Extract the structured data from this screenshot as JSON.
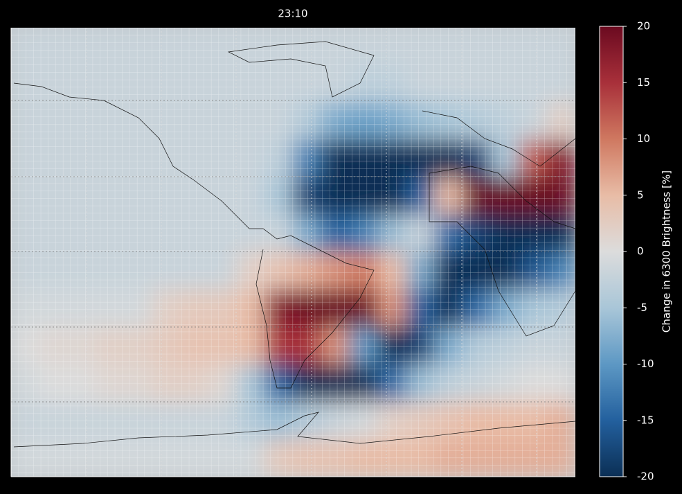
{
  "chart_data": {
    "type": "heatmap",
    "title": "23:10",
    "colorbar_label": "Change in 6300 Brightness [%]",
    "zlim": [
      -20,
      20
    ],
    "zticks": [
      20,
      15,
      10,
      5,
      0,
      -5,
      -10,
      -15,
      -20
    ],
    "colormap": [
      "#0b2f55",
      "#23609e",
      "#5d98c4",
      "#a9c6d8",
      "#dcdcdc",
      "#e8bca6",
      "#cf7860",
      "#a8303a",
      "#6b0a20"
    ],
    "values": [
      [
        -2,
        -2,
        -2,
        -2,
        -2,
        -2,
        -2,
        -2,
        -2,
        -2,
        -2,
        -2,
        -2,
        -2,
        -2,
        -2,
        -2,
        -2,
        -2,
        -2
      ],
      [
        -2,
        -2,
        -2,
        -2,
        -2,
        -2,
        -2,
        -2,
        -2,
        -2,
        -2,
        -2,
        -3,
        -3,
        -2,
        -2,
        -2,
        -2,
        -2,
        -2
      ],
      [
        -2,
        -2,
        -2,
        -2,
        -2,
        -2,
        -2,
        -2,
        -2,
        -2,
        -4,
        -8,
        -9,
        -8,
        -6,
        -5,
        -4,
        -3,
        -2,
        2
      ],
      [
        -2,
        -2,
        -2,
        -2,
        -2,
        -2,
        -2,
        -2,
        -2,
        -3,
        -12,
        -20,
        -20,
        -20,
        -20,
        -20,
        -18,
        -5,
        12,
        18
      ],
      [
        -2,
        -2,
        -2,
        -2,
        -2,
        -2,
        -2,
        -2,
        -2,
        -5,
        -18,
        -20,
        -20,
        -20,
        -15,
        5,
        20,
        20,
        20,
        20
      ],
      [
        -2,
        -2,
        -2,
        -2,
        -2,
        -2,
        -2,
        -2,
        -2,
        -2,
        -8,
        -15,
        -12,
        -6,
        -2,
        -14,
        -18,
        -20,
        -20,
        -20
      ],
      [
        -2,
        -2,
        -2,
        -2,
        -2,
        -2,
        -2,
        -2,
        2,
        4,
        6,
        8,
        10,
        5,
        -8,
        -20,
        -20,
        -20,
        -16,
        -12
      ],
      [
        -1,
        -1,
        -1,
        -1,
        -1,
        2,
        3,
        3,
        5,
        18,
        20,
        20,
        20,
        8,
        -15,
        -20,
        -14,
        -8,
        -5,
        -4
      ],
      [
        0,
        1,
        1,
        2,
        2,
        3,
        4,
        4,
        5,
        15,
        15,
        8,
        -10,
        -20,
        -18,
        -8,
        -4,
        -3,
        -2,
        -2
      ],
      [
        -1,
        0,
        0,
        1,
        1,
        2,
        2,
        1,
        -5,
        -15,
        -20,
        -20,
        -20,
        -14,
        -6,
        -3,
        -2,
        -1,
        0,
        0
      ],
      [
        -2,
        -2,
        -2,
        -2,
        -2,
        -2,
        -2,
        -2,
        -4,
        -6,
        -4,
        -2,
        -1,
        2,
        3,
        4,
        5,
        5,
        5,
        6
      ],
      [
        -1,
        -1,
        -1,
        -1,
        -1,
        -1,
        -1,
        -1,
        -1,
        3,
        4,
        4,
        5,
        5,
        5,
        6,
        6,
        6,
        6,
        6
      ]
    ]
  }
}
